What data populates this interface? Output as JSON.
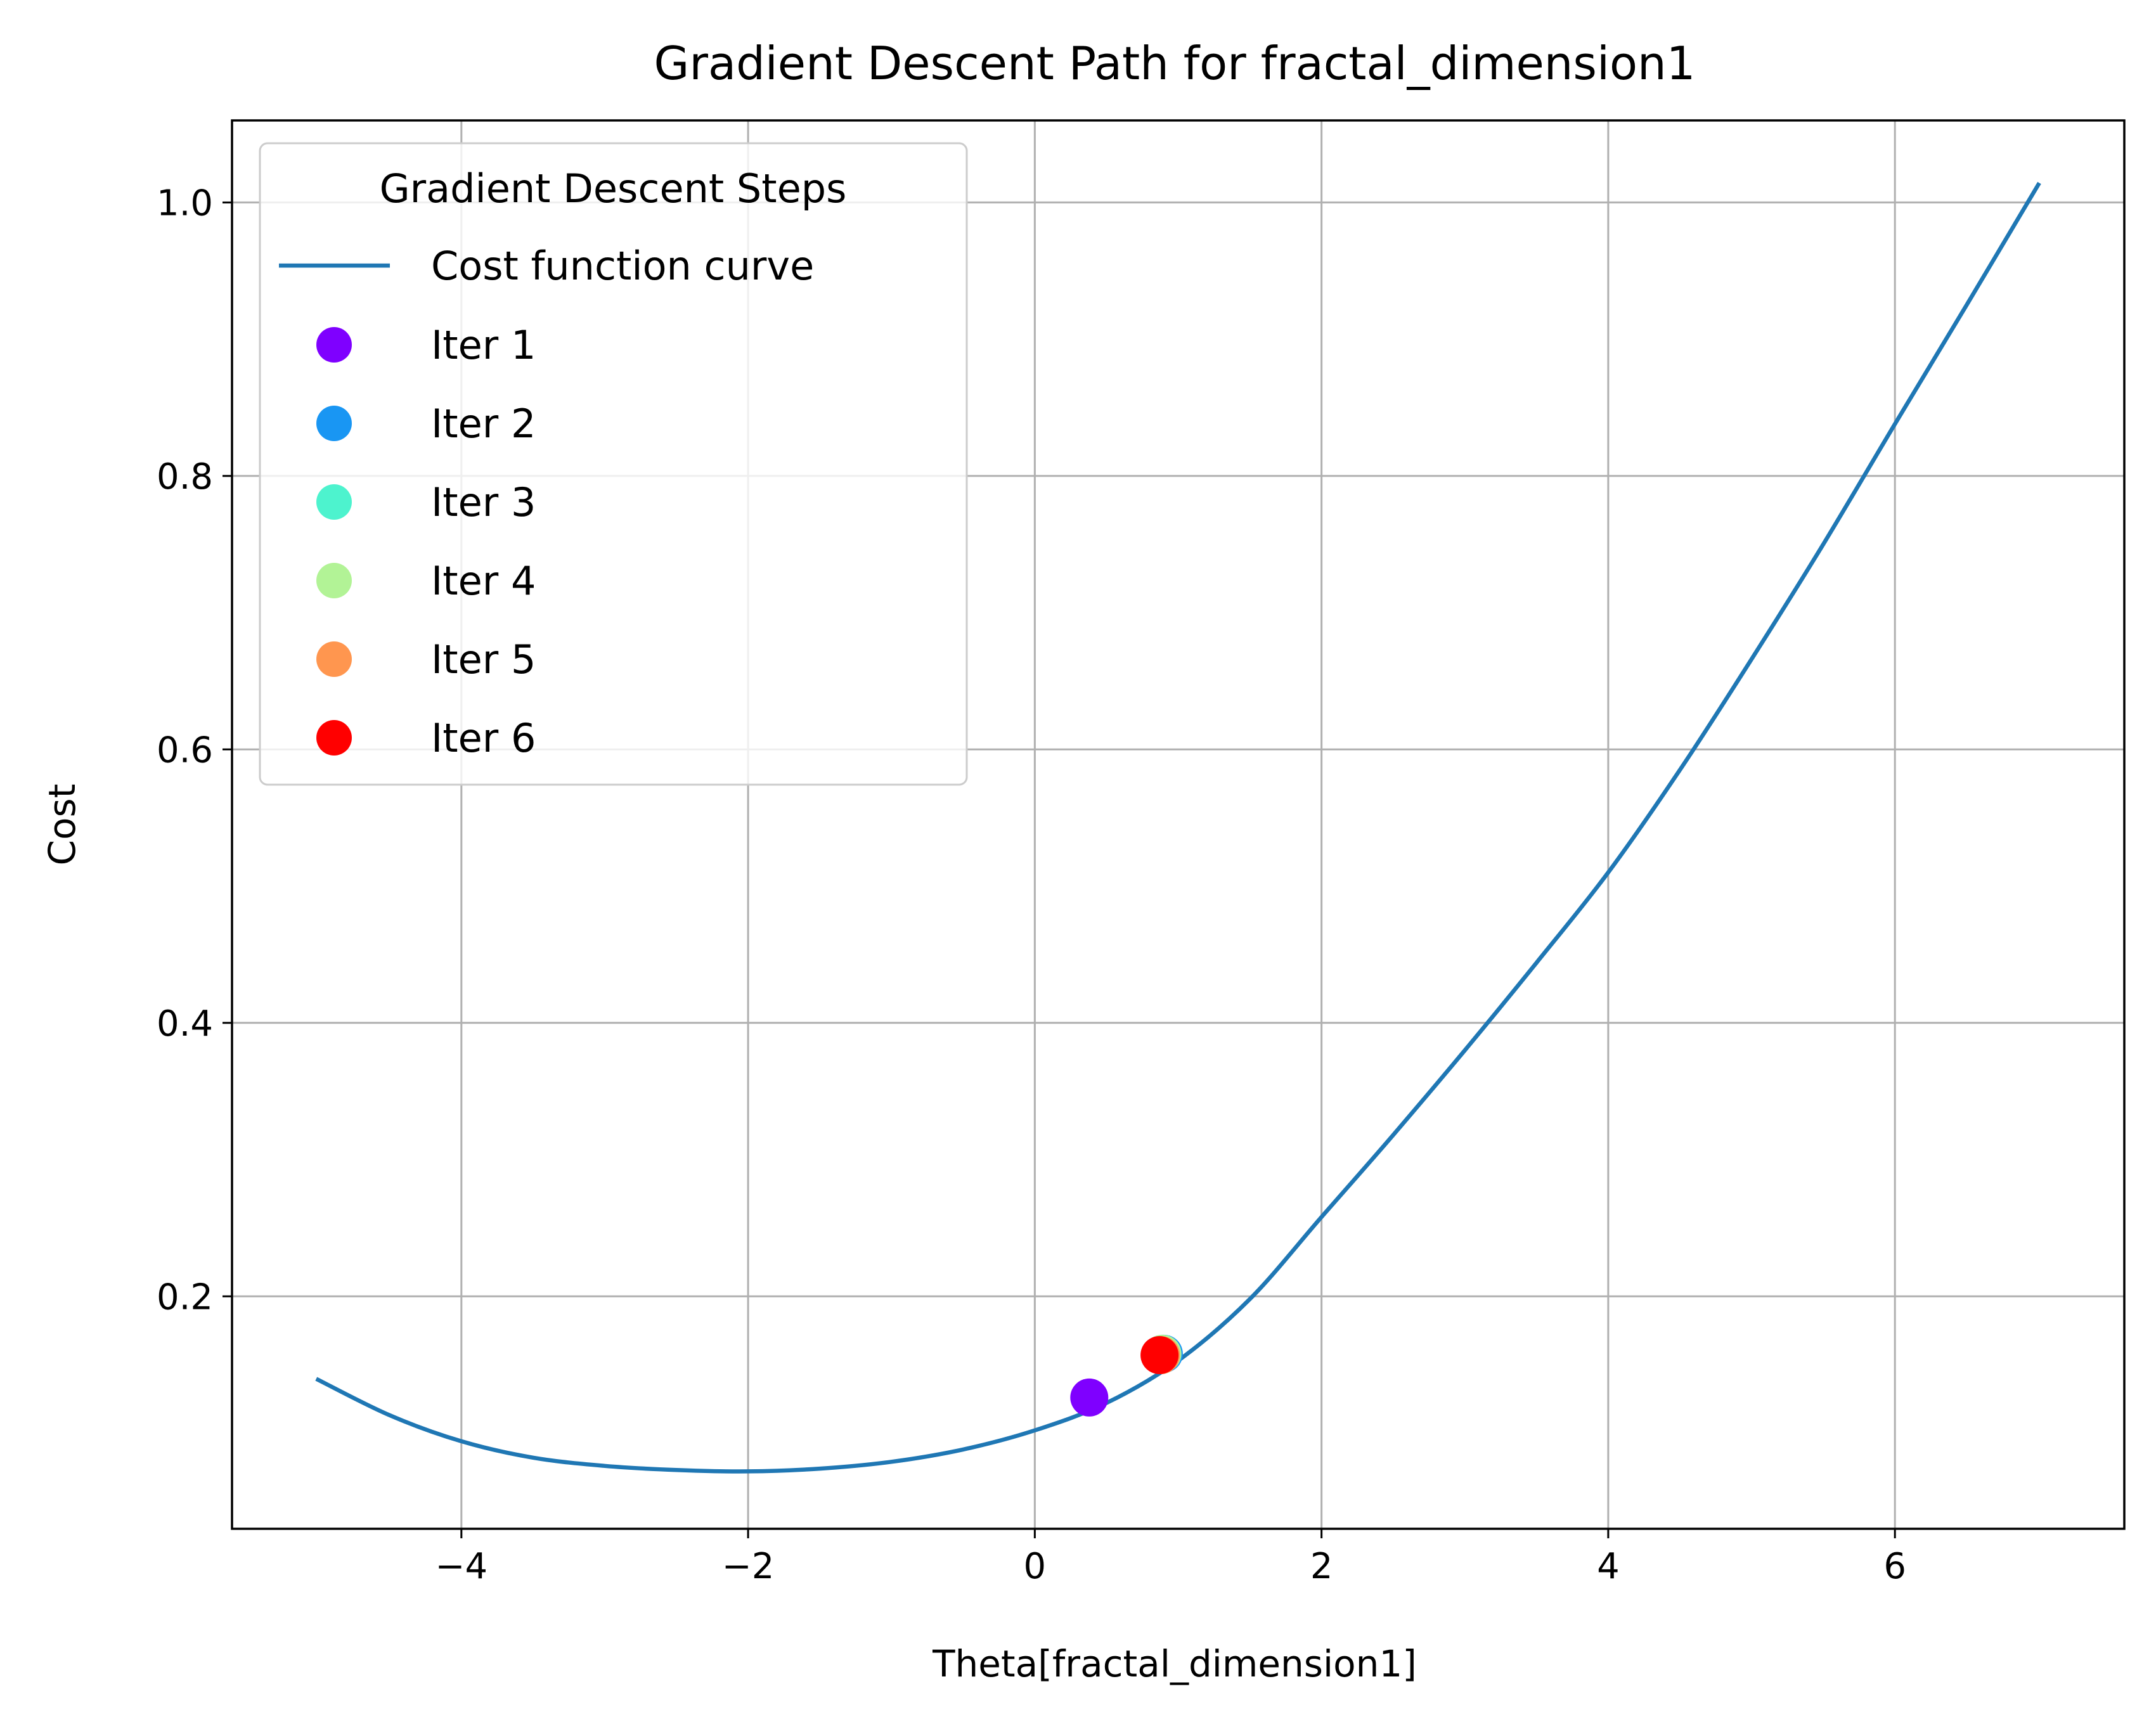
{
  "chart_data": {
    "type": "line",
    "title": "Gradient Descent Path for fractal_dimension1",
    "xlabel": "Theta[fractal_dimension1]",
    "ylabel": "Cost",
    "xlim": [
      -5.6,
      7.6
    ],
    "ylim": [
      0.03,
      1.06
    ],
    "x_ticks": [
      -4,
      -2,
      0,
      2,
      4,
      6
    ],
    "x_tick_labels": [
      "−4",
      "−2",
      "0",
      "2",
      "4",
      "6"
    ],
    "y_ticks": [
      0.2,
      0.4,
      0.6,
      0.8,
      1.0
    ],
    "y_tick_labels": [
      "0.2",
      "0.4",
      "0.6",
      "0.8",
      "1.0"
    ],
    "grid": true,
    "legend": {
      "title": "Gradient Descent Steps",
      "placement": "upper-left"
    },
    "curve": {
      "name": "Cost function curve",
      "color": "#1f77b4",
      "x": [
        -5,
        -4.5,
        -4,
        -3.5,
        -3,
        -2.5,
        -2,
        -1.5,
        -1,
        -0.5,
        0,
        0.5,
        1,
        1.5,
        2,
        2.5,
        3,
        3.5,
        4,
        4.5,
        5,
        5.5,
        6,
        6.5,
        7
      ],
      "y": [
        0.139,
        0.113,
        0.094,
        0.082,
        0.076,
        0.073,
        0.072,
        0.074,
        0.079,
        0.088,
        0.102,
        0.122,
        0.153,
        0.198,
        0.258,
        0.318,
        0.38,
        0.444,
        0.51,
        0.585,
        0.666,
        0.75,
        0.838,
        0.925,
        1.013
      ]
    },
    "points": [
      {
        "name": "Iter 1",
        "x": 0.38,
        "y": 0.126,
        "color": "#7f00ff"
      },
      {
        "name": "Iter 2",
        "x": 0.9,
        "y": 0.158,
        "color": "#1996f3"
      },
      {
        "name": "Iter 3",
        "x": 0.89,
        "y": 0.158,
        "color": "#4df3ce"
      },
      {
        "name": "Iter 4",
        "x": 0.89,
        "y": 0.158,
        "color": "#b2f396"
      },
      {
        "name": "Iter 5",
        "x": 0.88,
        "y": 0.157,
        "color": "#ff964f"
      },
      {
        "name": "Iter 6",
        "x": 0.87,
        "y": 0.157,
        "color": "#ff0000"
      }
    ]
  }
}
